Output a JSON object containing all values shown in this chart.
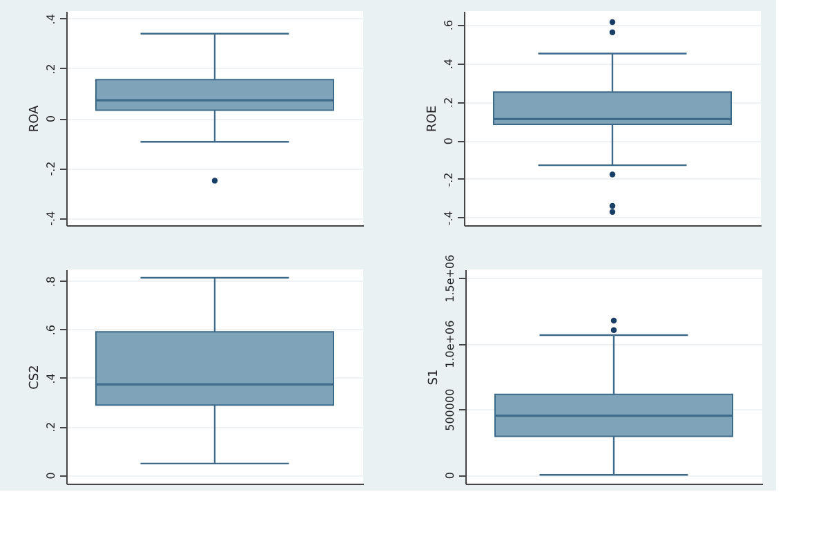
{
  "chart_data": [
    {
      "type": "box",
      "categories": [
        null
      ],
      "ylabel": "ROA",
      "color": "#7fa3b8",
      "ylim": [
        -0.43,
        0.43
      ],
      "yticks": [
        {
          "value": -0.4,
          "label": "-.4"
        },
        {
          "value": -0.2,
          "label": "-.2"
        },
        {
          "value": 0,
          "label": "0"
        },
        {
          "value": 0.2,
          "label": ".2"
        },
        {
          "value": 0.4,
          "label": ".4"
        }
      ],
      "grid": "y",
      "tick_labels": "y",
      "boxes": [
        {
          "low": -0.095,
          "q1": 0.032,
          "median": 0.072,
          "q3": 0.155,
          "high": 0.339,
          "outliers": [
            -0.251
          ]
        }
      ]
    },
    {
      "type": "box",
      "categories": [
        null
      ],
      "ylabel": "ROE",
      "color": "#7fa3b8",
      "ylim": [
        -0.44,
        0.67
      ],
      "yticks": [
        {
          "value": -0.4,
          "label": "-.4"
        },
        {
          "value": -0.2,
          "label": "-.2"
        },
        {
          "value": 0,
          "label": "0"
        },
        {
          "value": 0.2,
          "label": ".2"
        },
        {
          "value": 0.4,
          "label": ".4"
        },
        {
          "value": 0.6,
          "label": ".6"
        }
      ],
      "grid": "y",
      "tick_labels": "y",
      "boxes": [
        {
          "low": -0.129,
          "q1": 0.083,
          "median": 0.11,
          "q3": 0.25,
          "high": 0.45,
          "outliers": [
            0.613,
            0.56,
            -0.177,
            -0.34,
            -0.371
          ]
        }
      ]
    },
    {
      "type": "box",
      "categories": [
        null
      ],
      "ylabel": "CS2",
      "color": "#7fa3b8",
      "ylim": [
        -0.036,
        0.847
      ],
      "yticks": [
        {
          "value": 0,
          "label": "0"
        },
        {
          "value": 0.2,
          "label": ".2"
        },
        {
          "value": 0.4,
          "label": ".4"
        },
        {
          "value": 0.6,
          "label": ".6"
        },
        {
          "value": 0.8,
          "label": ".8"
        }
      ],
      "grid": "y",
      "tick_labels": "y",
      "boxes": [
        {
          "low": 0.047,
          "q1": 0.288,
          "median": 0.373,
          "q3": 0.59,
          "high": 0.813
        }
      ]
    },
    {
      "type": "box",
      "categories": [
        null
      ],
      "ylabel": "S1",
      "color": "#7fa3b8",
      "ylim": [
        -67000,
        1564000
      ],
      "yticks": [
        {
          "value": 0,
          "label": "0"
        },
        {
          "value": 500000,
          "label": "500000"
        },
        {
          "value": 1000000,
          "label": "1.0e+06"
        },
        {
          "value": 1500000,
          "label": "1.5e+06"
        }
      ],
      "grid": "y",
      "tick_labels": "y",
      "boxes": [
        {
          "low": 0,
          "q1": 293000,
          "median": 450500,
          "q3": 613600,
          "high": 1064000,
          "outliers": [
            1175000,
            1102000
          ]
        }
      ]
    }
  ]
}
